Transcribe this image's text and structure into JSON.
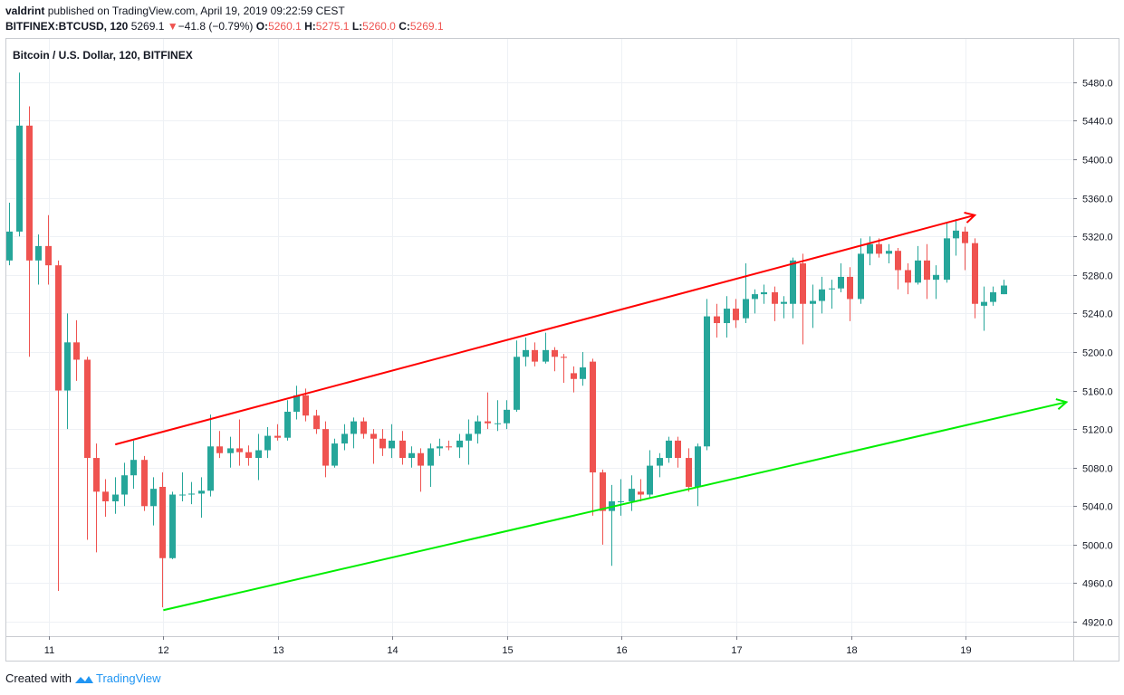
{
  "header": {
    "author": "valdrint",
    "published_text": "published on TradingView.com, April 19, 2019 09:22:59 CEST",
    "symbol": "BITFINEX:BTCUSD, 120",
    "last": "5269.1",
    "change": "−41.8 (−0.79%)",
    "o_label": "O:",
    "o_value": "5260.1",
    "h_label": "H:",
    "h_value": "5275.1",
    "l_label": "L:",
    "l_value": "5260.0",
    "c_label": "C:",
    "c_value": "5269.1",
    "change_direction": "down"
  },
  "chart_title": "Bitcoin / U.S. Dollar, 120, BITFINEX",
  "footer": {
    "created_with": "Created with",
    "brand": "TradingView"
  },
  "colors": {
    "up": "#26a69a",
    "down": "#ef5350",
    "resistance_line": "#ff0000",
    "support_line": "#00ee00",
    "grid": "#eef1f5",
    "axis": "#787b86"
  },
  "chart_data": {
    "type": "candlestick",
    "title": "Bitcoin / U.S. Dollar, 120, BITFINEX",
    "x_axis": {
      "unit": "day (April 2019)",
      "range": [
        10.63,
        19.94
      ],
      "ticks": [
        "11",
        "12",
        "13",
        "14",
        "15",
        "16",
        "17",
        "18",
        "19"
      ],
      "tick_values": [
        11,
        12,
        13,
        14,
        15,
        16,
        17,
        18,
        19
      ]
    },
    "y_axis": {
      "range": [
        4905,
        5525
      ],
      "position": "right",
      "ticks": [
        "4920.0",
        "4960.0",
        "5000.0",
        "5040.0",
        "5080.0",
        "5120.0",
        "5160.0",
        "5200.0",
        "5240.0",
        "5280.0",
        "5320.0",
        "5360.0",
        "5400.0",
        "5440.0",
        "5480.0"
      ]
    },
    "grid": true,
    "interval_days": 0.0833,
    "candles": [
      {
        "t": 10.65,
        "o": 5295,
        "h": 5355,
        "l": 5290,
        "c": 5325
      },
      {
        "t": 10.74,
        "o": 5325,
        "h": 5490,
        "l": 5320,
        "c": 5435
      },
      {
        "t": 10.83,
        "o": 5435,
        "h": 5455,
        "l": 5195,
        "c": 5295
      },
      {
        "t": 10.91,
        "o": 5295,
        "h": 5322,
        "l": 5270,
        "c": 5310
      },
      {
        "t": 10.99,
        "o": 5310,
        "h": 5342,
        "l": 5270,
        "c": 5290
      },
      {
        "t": 11.08,
        "o": 5290,
        "h": 5295,
        "l": 4952,
        "c": 5160
      },
      {
        "t": 11.16,
        "o": 5160,
        "h": 5240,
        "l": 5120,
        "c": 5210
      },
      {
        "t": 11.24,
        "o": 5210,
        "h": 5233,
        "l": 5170,
        "c": 5192
      },
      {
        "t": 11.33,
        "o": 5192,
        "h": 5195,
        "l": 5005,
        "c": 5090
      },
      {
        "t": 11.41,
        "o": 5090,
        "h": 5105,
        "l": 4992,
        "c": 5055
      },
      {
        "t": 11.49,
        "o": 5055,
        "h": 5068,
        "l": 5029,
        "c": 5045
      },
      {
        "t": 11.58,
        "o": 5045,
        "h": 5070,
        "l": 5032,
        "c": 5052
      },
      {
        "t": 11.66,
        "o": 5052,
        "h": 5085,
        "l": 5040,
        "c": 5072
      },
      {
        "t": 11.74,
        "o": 5072,
        "h": 5108,
        "l": 5058,
        "c": 5088
      },
      {
        "t": 11.83,
        "o": 5088,
        "h": 5092,
        "l": 5035,
        "c": 5040
      },
      {
        "t": 11.91,
        "o": 5040,
        "h": 5070,
        "l": 5020,
        "c": 5058
      },
      {
        "t": 11.99,
        "o": 5060,
        "h": 5075,
        "l": 4935,
        "c": 4986
      },
      {
        "t": 12.08,
        "o": 4986,
        "h": 5055,
        "l": 4985,
        "c": 5052
      },
      {
        "t": 12.16,
        "o": 5052,
        "h": 5075,
        "l": 5045,
        "c": 5052
      },
      {
        "t": 12.24,
        "o": 5052,
        "h": 5065,
        "l": 5042,
        "c": 5053
      },
      {
        "t": 12.33,
        "o": 5053,
        "h": 5070,
        "l": 5028,
        "c": 5056
      },
      {
        "t": 12.41,
        "o": 5056,
        "h": 5135,
        "l": 5050,
        "c": 5102
      },
      {
        "t": 12.49,
        "o": 5102,
        "h": 5118,
        "l": 5090,
        "c": 5095
      },
      {
        "t": 12.58,
        "o": 5095,
        "h": 5112,
        "l": 5080,
        "c": 5100
      },
      {
        "t": 12.66,
        "o": 5100,
        "h": 5130,
        "l": 5082,
        "c": 5096
      },
      {
        "t": 12.74,
        "o": 5096,
        "h": 5103,
        "l": 5082,
        "c": 5090
      },
      {
        "t": 12.83,
        "o": 5090,
        "h": 5115,
        "l": 5067,
        "c": 5098
      },
      {
        "t": 12.91,
        "o": 5098,
        "h": 5122,
        "l": 5090,
        "c": 5113
      },
      {
        "t": 12.99,
        "o": 5113,
        "h": 5125,
        "l": 5108,
        "c": 5111
      },
      {
        "t": 13.08,
        "o": 5111,
        "h": 5150,
        "l": 5108,
        "c": 5138
      },
      {
        "t": 13.16,
        "o": 5138,
        "h": 5165,
        "l": 5130,
        "c": 5155
      },
      {
        "t": 13.24,
        "o": 5155,
        "h": 5162,
        "l": 5128,
        "c": 5134
      },
      {
        "t": 13.33,
        "o": 5134,
        "h": 5140,
        "l": 5115,
        "c": 5120
      },
      {
        "t": 13.41,
        "o": 5120,
        "h": 5128,
        "l": 5070,
        "c": 5082
      },
      {
        "t": 13.49,
        "o": 5082,
        "h": 5110,
        "l": 5080,
        "c": 5105
      },
      {
        "t": 13.58,
        "o": 5105,
        "h": 5125,
        "l": 5098,
        "c": 5115
      },
      {
        "t": 13.66,
        "o": 5115,
        "h": 5132,
        "l": 5100,
        "c": 5128
      },
      {
        "t": 13.74,
        "o": 5128,
        "h": 5132,
        "l": 5110,
        "c": 5115
      },
      {
        "t": 13.83,
        "o": 5115,
        "h": 5120,
        "l": 5084,
        "c": 5110
      },
      {
        "t": 13.91,
        "o": 5110,
        "h": 5120,
        "l": 5092,
        "c": 5100
      },
      {
        "t": 13.99,
        "o": 5100,
        "h": 5125,
        "l": 5090,
        "c": 5108
      },
      {
        "t": 14.08,
        "o": 5108,
        "h": 5118,
        "l": 5083,
        "c": 5090
      },
      {
        "t": 14.16,
        "o": 5090,
        "h": 5102,
        "l": 5080,
        "c": 5095
      },
      {
        "t": 14.24,
        "o": 5095,
        "h": 5100,
        "l": 5055,
        "c": 5082
      },
      {
        "t": 14.33,
        "o": 5082,
        "h": 5105,
        "l": 5060,
        "c": 5100
      },
      {
        "t": 14.41,
        "o": 5100,
        "h": 5110,
        "l": 5092,
        "c": 5102
      },
      {
        "t": 14.49,
        "o": 5102,
        "h": 5108,
        "l": 5098,
        "c": 5101
      },
      {
        "t": 14.58,
        "o": 5101,
        "h": 5115,
        "l": 5090,
        "c": 5108
      },
      {
        "t": 14.66,
        "o": 5108,
        "h": 5130,
        "l": 5083,
        "c": 5115
      },
      {
        "t": 14.74,
        "o": 5115,
        "h": 5134,
        "l": 5105,
        "c": 5128
      },
      {
        "t": 14.83,
        "o": 5128,
        "h": 5158,
        "l": 5120,
        "c": 5126
      },
      {
        "t": 14.91,
        "o": 5126,
        "h": 5150,
        "l": 5118,
        "c": 5126
      },
      {
        "t": 14.99,
        "o": 5126,
        "h": 5150,
        "l": 5120,
        "c": 5140
      },
      {
        "t": 15.08,
        "o": 5140,
        "h": 5212,
        "l": 5138,
        "c": 5195
      },
      {
        "t": 15.16,
        "o": 5195,
        "h": 5215,
        "l": 5185,
        "c": 5202
      },
      {
        "t": 15.24,
        "o": 5202,
        "h": 5210,
        "l": 5185,
        "c": 5190
      },
      {
        "t": 15.33,
        "o": 5190,
        "h": 5220,
        "l": 5188,
        "c": 5202
      },
      {
        "t": 15.41,
        "o": 5202,
        "h": 5205,
        "l": 5180,
        "c": 5195
      },
      {
        "t": 15.49,
        "o": 5195,
        "h": 5198,
        "l": 5168,
        "c": 5194
      },
      {
        "t": 15.58,
        "o": 5178,
        "h": 5185,
        "l": 5158,
        "c": 5172
      },
      {
        "t": 15.66,
        "o": 5172,
        "h": 5200,
        "l": 5165,
        "c": 5184
      },
      {
        "t": 15.74,
        "o": 5190,
        "h": 5193,
        "l": 5030,
        "c": 5075
      },
      {
        "t": 15.83,
        "o": 5075,
        "h": 5078,
        "l": 5000,
        "c": 5035
      },
      {
        "t": 15.91,
        "o": 5035,
        "h": 5062,
        "l": 4978,
        "c": 5045
      },
      {
        "t": 15.99,
        "o": 5045,
        "h": 5068,
        "l": 5030,
        "c": 5045
      },
      {
        "t": 16.08,
        "o": 5045,
        "h": 5072,
        "l": 5035,
        "c": 5058
      },
      {
        "t": 16.16,
        "o": 5055,
        "h": 5068,
        "l": 5045,
        "c": 5052
      },
      {
        "t": 16.24,
        "o": 5052,
        "h": 5098,
        "l": 5048,
        "c": 5082
      },
      {
        "t": 16.33,
        "o": 5082,
        "h": 5095,
        "l": 5070,
        "c": 5090
      },
      {
        "t": 16.41,
        "o": 5090,
        "h": 5112,
        "l": 5085,
        "c": 5108
      },
      {
        "t": 16.49,
        "o": 5108,
        "h": 5112,
        "l": 5080,
        "c": 5090
      },
      {
        "t": 16.58,
        "o": 5090,
        "h": 5100,
        "l": 5055,
        "c": 5060
      },
      {
        "t": 16.66,
        "o": 5060,
        "h": 5105,
        "l": 5040,
        "c": 5102
      },
      {
        "t": 16.74,
        "o": 5102,
        "h": 5255,
        "l": 5098,
        "c": 5237
      },
      {
        "t": 16.83,
        "o": 5237,
        "h": 5250,
        "l": 5215,
        "c": 5230
      },
      {
        "t": 16.91,
        "o": 5230,
        "h": 5258,
        "l": 5215,
        "c": 5245
      },
      {
        "t": 16.99,
        "o": 5245,
        "h": 5255,
        "l": 5225,
        "c": 5233
      },
      {
        "t": 17.08,
        "o": 5235,
        "h": 5292,
        "l": 5230,
        "c": 5255
      },
      {
        "t": 17.16,
        "o": 5255,
        "h": 5265,
        "l": 5240,
        "c": 5260
      },
      {
        "t": 17.24,
        "o": 5260,
        "h": 5270,
        "l": 5250,
        "c": 5262
      },
      {
        "t": 17.33,
        "o": 5262,
        "h": 5268,
        "l": 5232,
        "c": 5250
      },
      {
        "t": 17.41,
        "o": 5250,
        "h": 5258,
        "l": 5235,
        "c": 5252
      },
      {
        "t": 17.49,
        "o": 5250,
        "h": 5298,
        "l": 5235,
        "c": 5295
      },
      {
        "t": 17.58,
        "o": 5292,
        "h": 5302,
        "l": 5208,
        "c": 5250
      },
      {
        "t": 17.66,
        "o": 5250,
        "h": 5270,
        "l": 5225,
        "c": 5253
      },
      {
        "t": 17.74,
        "o": 5253,
        "h": 5278,
        "l": 5240,
        "c": 5265
      },
      {
        "t": 17.83,
        "o": 5265,
        "h": 5275,
        "l": 5245,
        "c": 5266
      },
      {
        "t": 17.91,
        "o": 5266,
        "h": 5292,
        "l": 5262,
        "c": 5278
      },
      {
        "t": 17.99,
        "o": 5278,
        "h": 5288,
        "l": 5232,
        "c": 5255
      },
      {
        "t": 18.08,
        "o": 5255,
        "h": 5318,
        "l": 5250,
        "c": 5302
      },
      {
        "t": 18.16,
        "o": 5302,
        "h": 5320,
        "l": 5290,
        "c": 5312
      },
      {
        "t": 18.24,
        "o": 5312,
        "h": 5318,
        "l": 5298,
        "c": 5302
      },
      {
        "t": 18.33,
        "o": 5302,
        "h": 5312,
        "l": 5292,
        "c": 5305
      },
      {
        "t": 18.41,
        "o": 5305,
        "h": 5308,
        "l": 5265,
        "c": 5285
      },
      {
        "t": 18.49,
        "o": 5285,
        "h": 5292,
        "l": 5260,
        "c": 5272
      },
      {
        "t": 18.58,
        "o": 5272,
        "h": 5310,
        "l": 5270,
        "c": 5295
      },
      {
        "t": 18.66,
        "o": 5295,
        "h": 5312,
        "l": 5255,
        "c": 5275
      },
      {
        "t": 18.74,
        "o": 5275,
        "h": 5290,
        "l": 5255,
        "c": 5280
      },
      {
        "t": 18.83,
        "o": 5275,
        "h": 5335,
        "l": 5272,
        "c": 5318
      },
      {
        "t": 18.91,
        "o": 5318,
        "h": 5338,
        "l": 5300,
        "c": 5326
      },
      {
        "t": 18.99,
        "o": 5325,
        "h": 5330,
        "l": 5285,
        "c": 5313
      },
      {
        "t": 19.08,
        "o": 5313,
        "h": 5318,
        "l": 5235,
        "c": 5250
      },
      {
        "t": 19.16,
        "o": 5248,
        "h": 5268,
        "l": 5222,
        "c": 5252
      },
      {
        "t": 19.24,
        "o": 5252,
        "h": 5268,
        "l": 5248,
        "c": 5262
      },
      {
        "t": 19.33,
        "o": 5260,
        "h": 5275,
        "l": 5260,
        "c": 5269
      }
    ],
    "trendlines": [
      {
        "name": "resistance",
        "color": "#ff0000",
        "from": {
          "t": 11.58,
          "price": 5104
        },
        "to": {
          "t": 19.08,
          "price": 5342
        },
        "arrow_end": true
      },
      {
        "name": "support",
        "color": "#00ee00",
        "from": {
          "t": 12.0,
          "price": 4932
        },
        "to": {
          "t": 19.88,
          "price": 5148
        },
        "arrow_end": true
      }
    ]
  }
}
